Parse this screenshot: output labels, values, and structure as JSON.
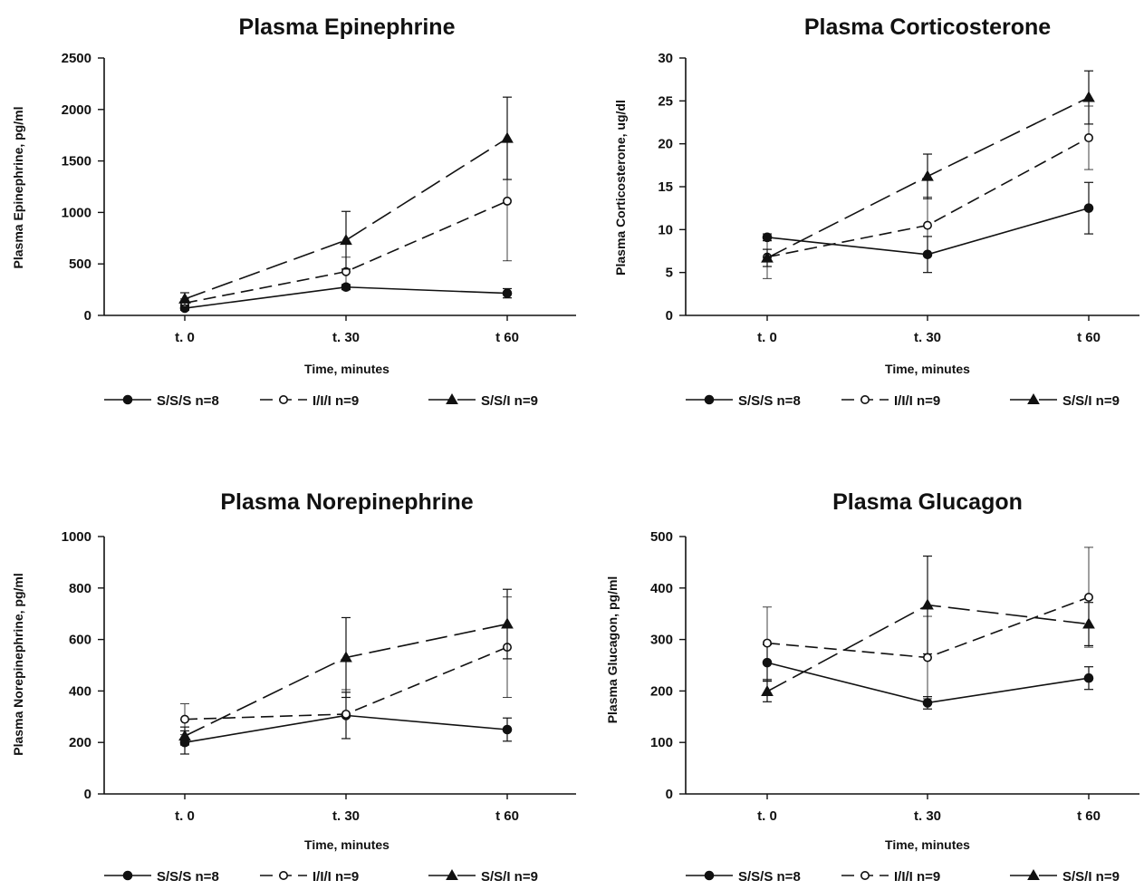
{
  "figure": {
    "line_color": "#111111",
    "series_styles": [
      {
        "marker": "filled-circle",
        "dash": "solid"
      },
      {
        "marker": "open-circle",
        "dash": "medium-dash"
      },
      {
        "marker": "filled-triangle",
        "dash": "long-dash"
      }
    ],
    "legend_labels": [
      "S/S/S  n=8",
      "I/I/I n=9",
      "S/S/I  n=9"
    ]
  },
  "chart_data": [
    {
      "type": "line",
      "title": "Plasma Epinephrine",
      "xlabel": "Time, minutes",
      "ylabel": "Plasma Epinephrine, pg/ml",
      "categories": [
        "t. 0",
        "t. 30",
        "t 60"
      ],
      "ylim": [
        0,
        2500
      ],
      "yticks": [
        0,
        500,
        1000,
        1500,
        2000,
        2500
      ],
      "legend_position": "below",
      "series": [
        {
          "name": "S/S/S  n=8",
          "values": [
            70,
            275,
            215
          ],
          "errors": [
            20,
            25,
            45
          ]
        },
        {
          "name": "I/I/I n=9",
          "values": [
            120,
            425,
            1110
          ],
          "errors": [
            40,
            140,
            580
          ]
        },
        {
          "name": "S/S/I  n=9",
          "values": [
            160,
            730,
            1720
          ],
          "errors": [
            60,
            280,
            400
          ]
        }
      ]
    },
    {
      "type": "line",
      "title": "Plasma Corticosterone",
      "xlabel": "Time, minutes",
      "ylabel": "Plasma Corticosterone, ug/dl",
      "categories": [
        "t. 0",
        "t. 30",
        "t 60"
      ],
      "ylim": [
        0,
        30
      ],
      "yticks": [
        0,
        5,
        10,
        15,
        20,
        25,
        30
      ],
      "legend_position": "below",
      "series": [
        {
          "name": "S/S/S  n=8",
          "values": [
            9.1,
            7.1,
            12.5
          ],
          "errors": [
            0.4,
            2.1,
            3.0
          ]
        },
        {
          "name": "I/I/I n=9",
          "values": [
            6.8,
            10.5,
            20.7
          ],
          "errors": [
            2.5,
            3.3,
            3.7
          ]
        },
        {
          "name": "S/S/I  n=9",
          "values": [
            6.7,
            16.2,
            25.4
          ],
          "errors": [
            1.0,
            2.6,
            3.1
          ]
        }
      ]
    },
    {
      "type": "line",
      "title": "Plasma Norepinephrine",
      "xlabel": "Time, minutes",
      "ylabel": "Plasma Norepinephrine, pg/ml",
      "categories": [
        "t. 0",
        "t. 30",
        "t 60"
      ],
      "ylim": [
        0,
        1000
      ],
      "yticks": [
        0,
        200,
        400,
        600,
        800,
        1000
      ],
      "legend_position": "below",
      "series": [
        {
          "name": "S/S/S  n=8",
          "values": [
            200,
            305,
            250
          ],
          "errors": [
            45,
            90,
            45
          ]
        },
        {
          "name": "I/I/I n=9",
          "values": [
            290,
            310,
            570
          ],
          "errors": [
            60,
            95,
            195
          ]
        },
        {
          "name": "S/S/I  n=9",
          "values": [
            225,
            530,
            660
          ],
          "errors": [
            35,
            155,
            135
          ]
        }
      ]
    },
    {
      "type": "line",
      "title": "Plasma Glucagon",
      "xlabel": "Time, minutes",
      "ylabel": "Plasma Glucagon, pg/ml",
      "categories": [
        "t. 0",
        "t. 30",
        "t 60"
      ],
      "ylim": [
        0,
        500
      ],
      "yticks": [
        0,
        100,
        200,
        300,
        400,
        500
      ],
      "legend_position": "below",
      "series": [
        {
          "name": "S/S/S  n=8",
          "values": [
            255,
            177,
            225
          ],
          "errors": [
            35,
            12,
            22
          ]
        },
        {
          "name": "I/I/I n=9",
          "values": [
            293,
            265,
            382
          ],
          "errors": [
            70,
            80,
            97
          ]
        },
        {
          "name": "S/S/I  n=9",
          "values": [
            199,
            367,
            330
          ],
          "errors": [
            20,
            95,
            42
          ]
        }
      ]
    }
  ]
}
